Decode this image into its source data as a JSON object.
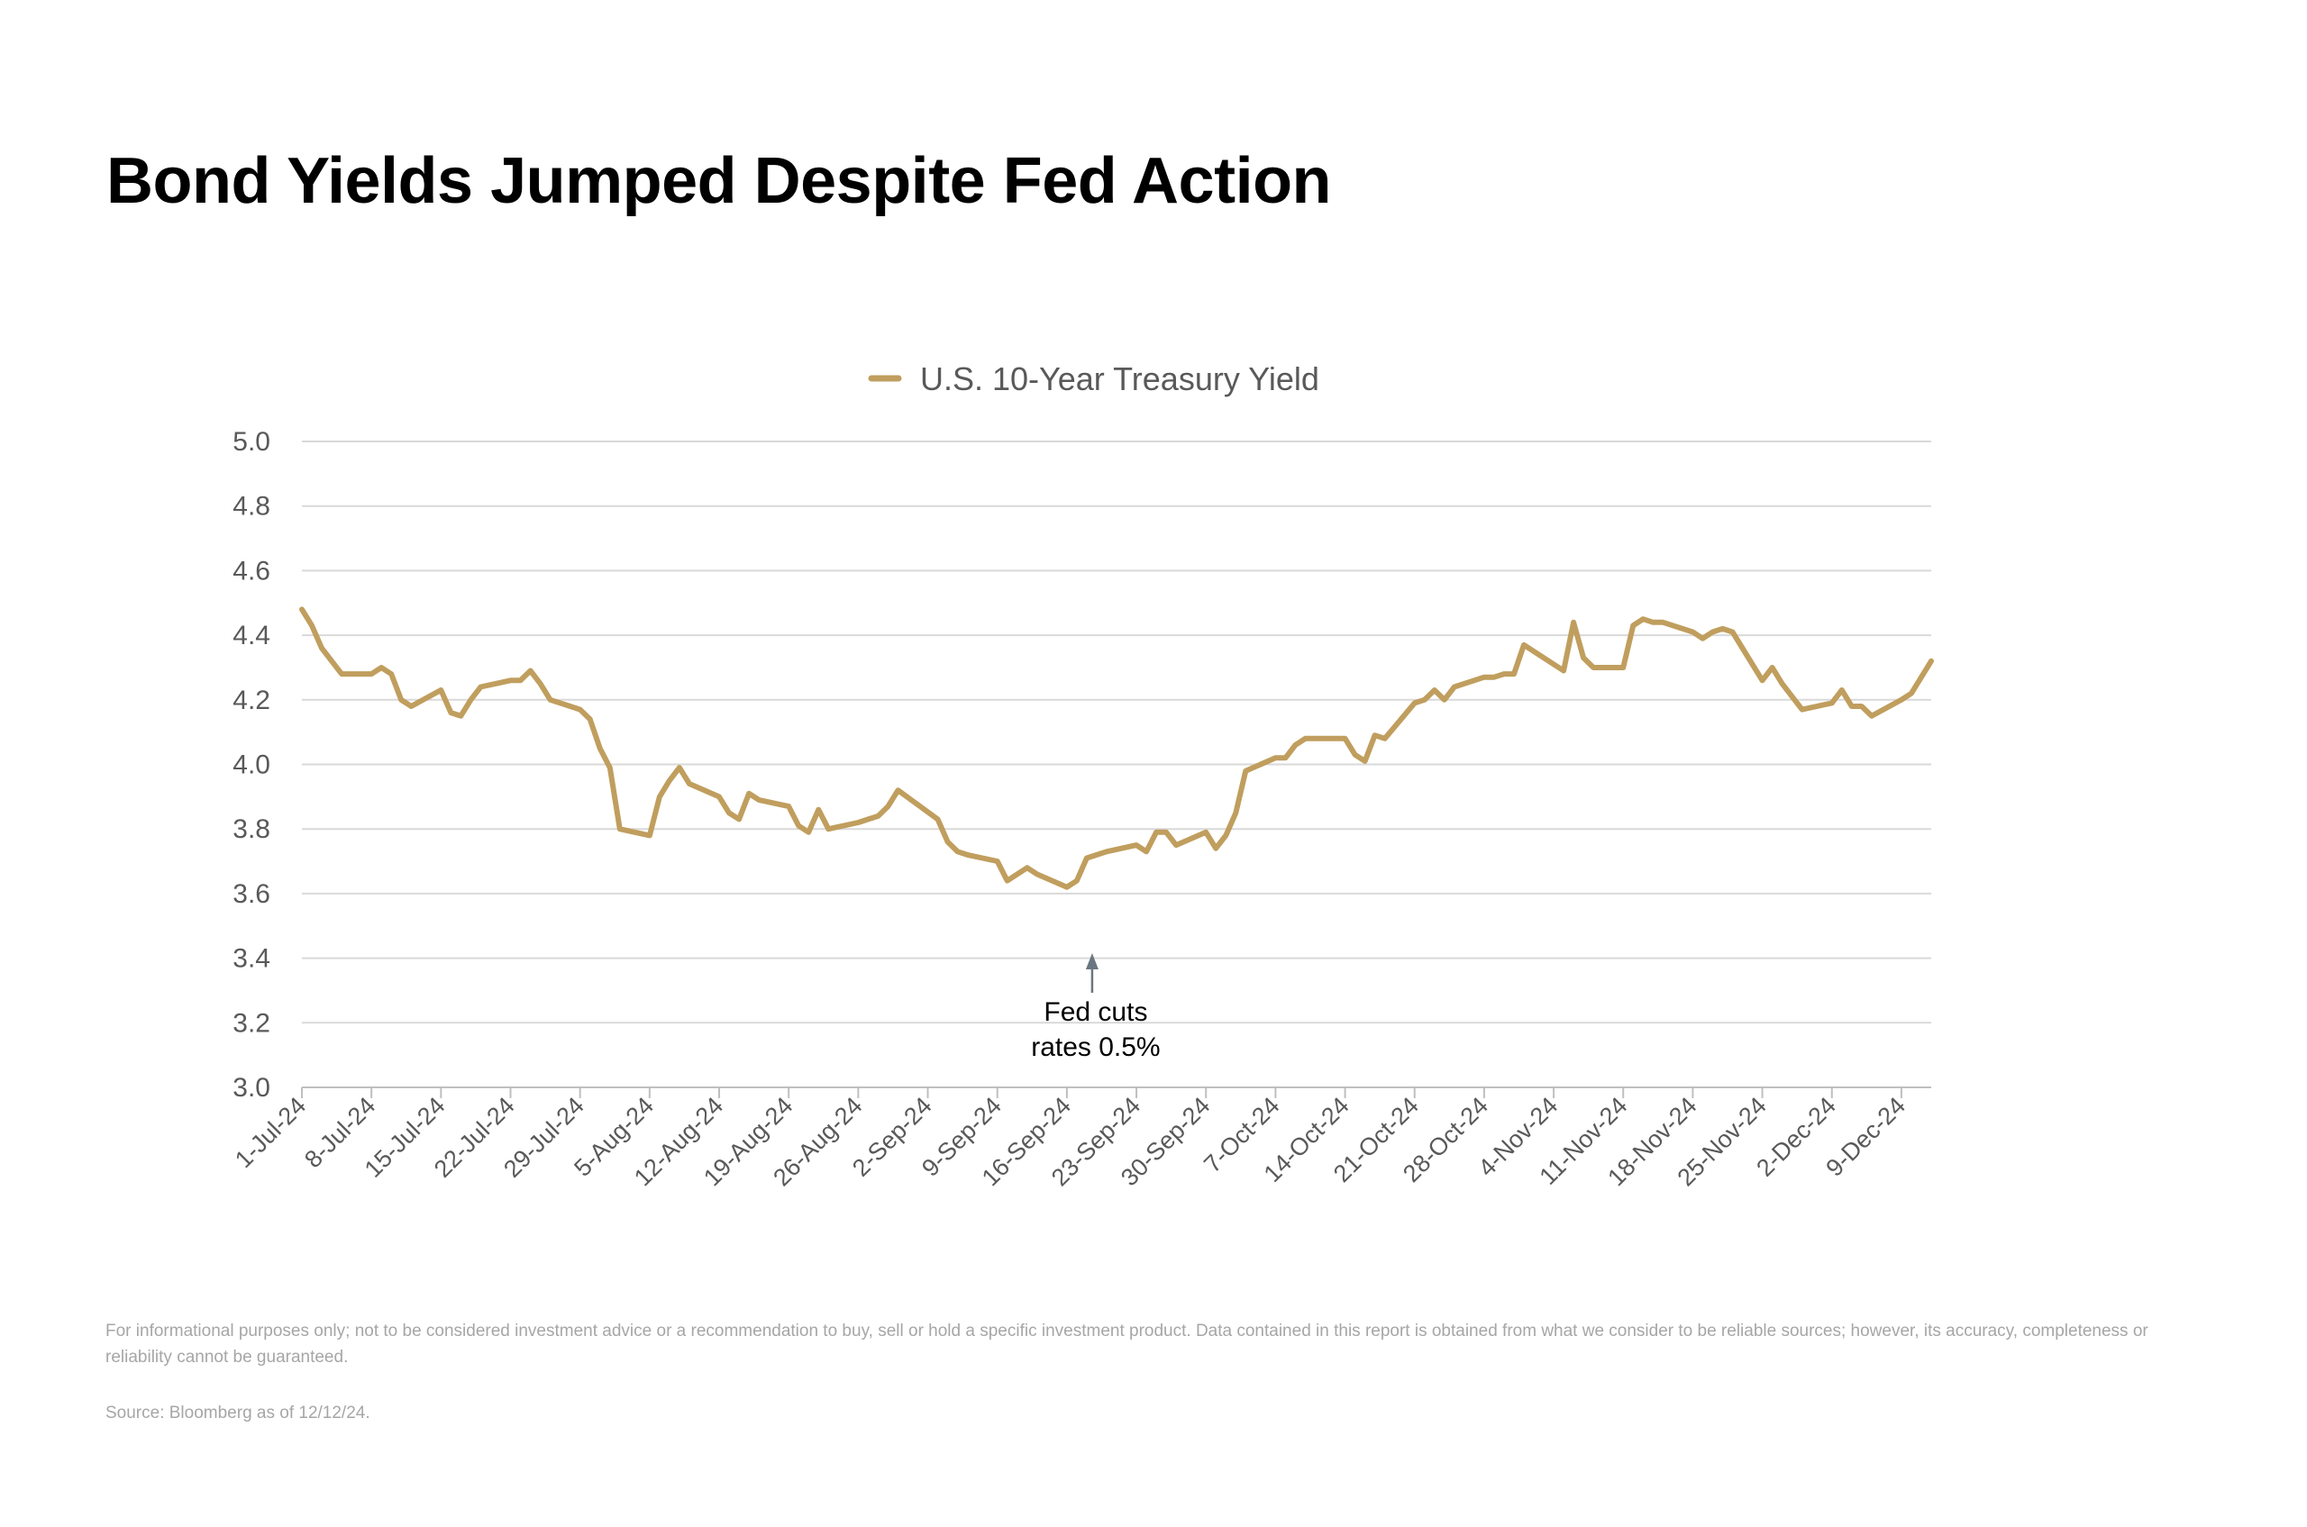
{
  "title": "Bond Yields Jumped Despite Fed Action",
  "disclaimer": "For informational purposes only; not to be considered investment advice or a recommendation to buy, sell or hold a specific investment product. Data contained in this report is obtained from what we consider to be reliable sources; however, its accuracy, completeness or reliability cannot be guaranteed.",
  "source": "Source: Bloomberg as of 12/12/24.",
  "colors": {
    "series": "#c09e5e",
    "grid": "#d9d9d9",
    "axis": "#bfbfbf",
    "text": "#595959",
    "arrow": "#6b7780"
  },
  "chart_data": {
    "type": "line",
    "legend": "top-center",
    "grid": true,
    "ylim": [
      3.0,
      5.0
    ],
    "yticks": [
      "3.0",
      "3.2",
      "3.4",
      "3.6",
      "3.8",
      "4.0",
      "4.2",
      "4.4",
      "4.6",
      "4.8",
      "5.0"
    ],
    "xlim": [
      "2024-07-01",
      "2024-12-12"
    ],
    "xticks": [
      {
        "date": "2024-07-01",
        "label": "1-Jul-24"
      },
      {
        "date": "2024-07-08",
        "label": "8-Jul-24"
      },
      {
        "date": "2024-07-15",
        "label": "15-Jul-24"
      },
      {
        "date": "2024-07-22",
        "label": "22-Jul-24"
      },
      {
        "date": "2024-07-29",
        "label": "29-Jul-24"
      },
      {
        "date": "2024-08-05",
        "label": "5-Aug-24"
      },
      {
        "date": "2024-08-12",
        "label": "12-Aug-24"
      },
      {
        "date": "2024-08-19",
        "label": "19-Aug-24"
      },
      {
        "date": "2024-08-26",
        "label": "26-Aug-24"
      },
      {
        "date": "2024-09-02",
        "label": "2-Sep-24"
      },
      {
        "date": "2024-09-09",
        "label": "9-Sep-24"
      },
      {
        "date": "2024-09-16",
        "label": "16-Sep-24"
      },
      {
        "date": "2024-09-23",
        "label": "23-Sep-24"
      },
      {
        "date": "2024-09-30",
        "label": "30-Sep-24"
      },
      {
        "date": "2024-10-07",
        "label": "7-Oct-24"
      },
      {
        "date": "2024-10-14",
        "label": "14-Oct-24"
      },
      {
        "date": "2024-10-21",
        "label": "21-Oct-24"
      },
      {
        "date": "2024-10-28",
        "label": "28-Oct-24"
      },
      {
        "date": "2024-11-04",
        "label": "4-Nov-24"
      },
      {
        "date": "2024-11-11",
        "label": "11-Nov-24"
      },
      {
        "date": "2024-11-18",
        "label": "18-Nov-24"
      },
      {
        "date": "2024-11-25",
        "label": "25-Nov-24"
      },
      {
        "date": "2024-12-02",
        "label": "2-Dec-24"
      },
      {
        "date": "2024-12-09",
        "label": "9-Dec-24"
      }
    ],
    "series": [
      {
        "name": "U.S. 10-Year Treasury Yield",
        "points": [
          [
            "2024-07-01",
            4.48
          ],
          [
            "2024-07-02",
            4.43
          ],
          [
            "2024-07-03",
            4.36
          ],
          [
            "2024-07-05",
            4.28
          ],
          [
            "2024-07-08",
            4.28
          ],
          [
            "2024-07-09",
            4.3
          ],
          [
            "2024-07-10",
            4.28
          ],
          [
            "2024-07-11",
            4.2
          ],
          [
            "2024-07-12",
            4.18
          ],
          [
            "2024-07-15",
            4.23
          ],
          [
            "2024-07-16",
            4.16
          ],
          [
            "2024-07-17",
            4.15
          ],
          [
            "2024-07-18",
            4.2
          ],
          [
            "2024-07-19",
            4.24
          ],
          [
            "2024-07-22",
            4.26
          ],
          [
            "2024-07-23",
            4.26
          ],
          [
            "2024-07-24",
            4.29
          ],
          [
            "2024-07-25",
            4.25
          ],
          [
            "2024-07-26",
            4.2
          ],
          [
            "2024-07-29",
            4.17
          ],
          [
            "2024-07-30",
            4.14
          ],
          [
            "2024-07-31",
            4.05
          ],
          [
            "2024-08-01",
            3.99
          ],
          [
            "2024-08-02",
            3.8
          ],
          [
            "2024-08-05",
            3.78
          ],
          [
            "2024-08-06",
            3.9
          ],
          [
            "2024-08-07",
            3.95
          ],
          [
            "2024-08-08",
            3.99
          ],
          [
            "2024-08-09",
            3.94
          ],
          [
            "2024-08-12",
            3.9
          ],
          [
            "2024-08-13",
            3.85
          ],
          [
            "2024-08-14",
            3.83
          ],
          [
            "2024-08-15",
            3.91
          ],
          [
            "2024-08-16",
            3.89
          ],
          [
            "2024-08-19",
            3.87
          ],
          [
            "2024-08-20",
            3.81
          ],
          [
            "2024-08-21",
            3.79
          ],
          [
            "2024-08-22",
            3.86
          ],
          [
            "2024-08-23",
            3.8
          ],
          [
            "2024-08-26",
            3.82
          ],
          [
            "2024-08-27",
            3.83
          ],
          [
            "2024-08-28",
            3.84
          ],
          [
            "2024-08-29",
            3.87
          ],
          [
            "2024-08-30",
            3.92
          ],
          [
            "2024-09-03",
            3.83
          ],
          [
            "2024-09-04",
            3.76
          ],
          [
            "2024-09-05",
            3.73
          ],
          [
            "2024-09-06",
            3.72
          ],
          [
            "2024-09-09",
            3.7
          ],
          [
            "2024-09-10",
            3.64
          ],
          [
            "2024-09-11",
            3.66
          ],
          [
            "2024-09-12",
            3.68
          ],
          [
            "2024-09-13",
            3.66
          ],
          [
            "2024-09-16",
            3.62
          ],
          [
            "2024-09-17",
            3.64
          ],
          [
            "2024-09-18",
            3.71
          ],
          [
            "2024-09-19",
            3.72
          ],
          [
            "2024-09-20",
            3.73
          ],
          [
            "2024-09-23",
            3.75
          ],
          [
            "2024-09-24",
            3.73
          ],
          [
            "2024-09-25",
            3.79
          ],
          [
            "2024-09-26",
            3.79
          ],
          [
            "2024-09-27",
            3.75
          ],
          [
            "2024-09-30",
            3.79
          ],
          [
            "2024-10-01",
            3.74
          ],
          [
            "2024-10-02",
            3.78
          ],
          [
            "2024-10-03",
            3.85
          ],
          [
            "2024-10-04",
            3.98
          ],
          [
            "2024-10-07",
            4.02
          ],
          [
            "2024-10-08",
            4.02
          ],
          [
            "2024-10-09",
            4.06
          ],
          [
            "2024-10-10",
            4.08
          ],
          [
            "2024-10-11",
            4.08
          ],
          [
            "2024-10-14",
            4.08
          ],
          [
            "2024-10-15",
            4.03
          ],
          [
            "2024-10-16",
            4.01
          ],
          [
            "2024-10-17",
            4.09
          ],
          [
            "2024-10-18",
            4.08
          ],
          [
            "2024-10-21",
            4.19
          ],
          [
            "2024-10-22",
            4.2
          ],
          [
            "2024-10-23",
            4.23
          ],
          [
            "2024-10-24",
            4.2
          ],
          [
            "2024-10-25",
            4.24
          ],
          [
            "2024-10-28",
            4.27
          ],
          [
            "2024-10-29",
            4.27
          ],
          [
            "2024-10-30",
            4.28
          ],
          [
            "2024-10-31",
            4.28
          ],
          [
            "2024-11-01",
            4.37
          ],
          [
            "2024-11-04",
            4.31
          ],
          [
            "2024-11-05",
            4.29
          ],
          [
            "2024-11-06",
            4.44
          ],
          [
            "2024-11-07",
            4.33
          ],
          [
            "2024-11-08",
            4.3
          ],
          [
            "2024-11-11",
            4.3
          ],
          [
            "2024-11-12",
            4.43
          ],
          [
            "2024-11-13",
            4.45
          ],
          [
            "2024-11-14",
            4.44
          ],
          [
            "2024-11-15",
            4.44
          ],
          [
            "2024-11-18",
            4.41
          ],
          [
            "2024-11-19",
            4.39
          ],
          [
            "2024-11-20",
            4.41
          ],
          [
            "2024-11-21",
            4.42
          ],
          [
            "2024-11-22",
            4.41
          ],
          [
            "2024-11-25",
            4.26
          ],
          [
            "2024-11-26",
            4.3
          ],
          [
            "2024-11-27",
            4.25
          ],
          [
            "2024-11-29",
            4.17
          ],
          [
            "2024-12-02",
            4.19
          ],
          [
            "2024-12-03",
            4.23
          ],
          [
            "2024-12-04",
            4.18
          ],
          [
            "2024-12-05",
            4.18
          ],
          [
            "2024-12-06",
            4.15
          ],
          [
            "2024-12-09",
            4.2
          ],
          [
            "2024-12-10",
            4.22
          ],
          [
            "2024-12-11",
            4.27
          ],
          [
            "2024-12-12",
            4.32
          ]
        ]
      }
    ],
    "annotation": {
      "date": "2024-09-18",
      "lines": [
        "Fed cuts",
        "rates 0.5%"
      ]
    }
  }
}
